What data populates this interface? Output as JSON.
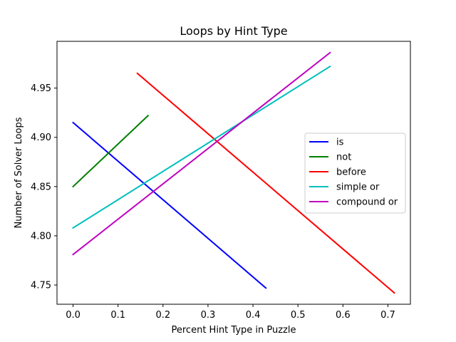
{
  "chart_data": {
    "type": "line",
    "title": "Loops by Hint Type",
    "xlabel": "Percent Hint Type in Puzzle",
    "ylabel": "Number of Solver Loops",
    "xlim": [
      -0.0357,
      0.75
    ],
    "ylim": [
      4.7305,
      4.9975
    ],
    "xticks": [
      0.0,
      0.1,
      0.2,
      0.3,
      0.4,
      0.5,
      0.6,
      0.7
    ],
    "xtick_labels": [
      "0.0",
      "0.1",
      "0.2",
      "0.3",
      "0.4",
      "0.5",
      "0.6",
      "0.7"
    ],
    "yticks": [
      4.75,
      4.8,
      4.85,
      4.9,
      4.95
    ],
    "ytick_labels": [
      "4.75",
      "4.80",
      "4.85",
      "4.90",
      "4.95"
    ],
    "grid": false,
    "legend_position": "center-right",
    "series": [
      {
        "name": "is",
        "color": "#0000ff",
        "x": [
          0.0,
          0.4286
        ],
        "y": [
          4.915,
          4.747
        ]
      },
      {
        "name": "not",
        "color": "#008000",
        "x": [
          0.0,
          0.1667
        ],
        "y": [
          4.85,
          4.922
        ]
      },
      {
        "name": "before",
        "color": "#ff0000",
        "x": [
          0.1429,
          0.7143
        ],
        "y": [
          4.965,
          4.742
        ]
      },
      {
        "name": "simple or",
        "color": "#00bfbf",
        "x": [
          0.0,
          0.5714
        ],
        "y": [
          4.808,
          4.972
        ]
      },
      {
        "name": "compound or",
        "color": "#bf00bf",
        "x": [
          0.0,
          0.5714
        ],
        "y": [
          4.781,
          4.986
        ]
      }
    ]
  }
}
